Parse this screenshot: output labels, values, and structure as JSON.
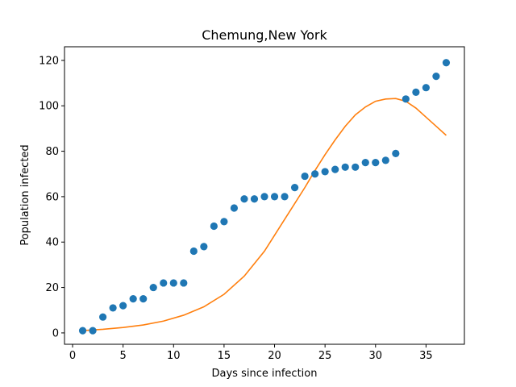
{
  "chart_data": {
    "type": "scatter",
    "title": "Chemung,New York",
    "xlabel": "Days since infection",
    "ylabel": "Population infected",
    "xlim": [
      -0.8,
      38.8
    ],
    "ylim": [
      -5,
      126
    ],
    "xticks": [
      0,
      5,
      10,
      15,
      20,
      25,
      30,
      35
    ],
    "yticks": [
      0,
      20,
      40,
      60,
      80,
      100,
      120
    ],
    "grid": false,
    "series": [
      {
        "kind": "scatter",
        "color": "#1f77b4",
        "x": [
          1,
          2,
          3,
          4,
          5,
          6,
          7,
          8,
          9,
          10,
          11,
          12,
          13,
          14,
          15,
          16,
          17,
          18,
          19,
          20,
          21,
          22,
          23,
          24,
          25,
          26,
          27,
          28,
          29,
          30,
          31,
          32,
          33,
          34,
          35,
          36,
          37
        ],
        "y": [
          1,
          1,
          7,
          11,
          12,
          15,
          15,
          20,
          22,
          22,
          22,
          36,
          38,
          47,
          49,
          55,
          59,
          59,
          60,
          60,
          60,
          64,
          69,
          70,
          71,
          72,
          73,
          73,
          75,
          75,
          76,
          79,
          103,
          106,
          108,
          113,
          119
        ]
      },
      {
        "kind": "line",
        "color": "#ff7f0e",
        "x": [
          1,
          3,
          5,
          7,
          9,
          11,
          13,
          15,
          17,
          19,
          21,
          23,
          24,
          25,
          26,
          27,
          28,
          29,
          30,
          31,
          32,
          33,
          34,
          35,
          36,
          37
        ],
        "y": [
          1,
          1.6,
          2.4,
          3.5,
          5.2,
          7.8,
          11.5,
          17,
          25,
          36,
          50,
          64,
          71.5,
          78.5,
          85,
          91,
          96,
          99.5,
          102,
          103,
          103.2,
          102,
          99,
          95,
          91,
          87
        ]
      }
    ]
  }
}
